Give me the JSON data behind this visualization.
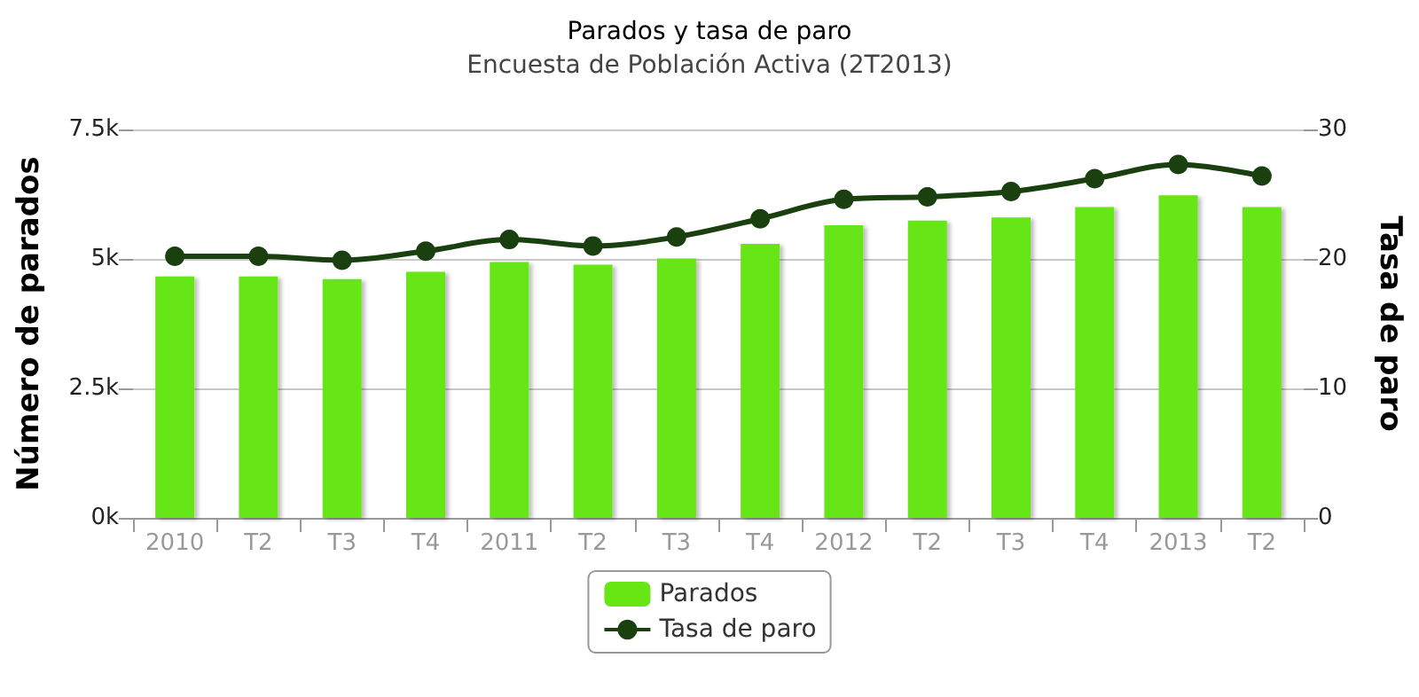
{
  "chart_data": {
    "type": "bar",
    "title": "Parados y tasa de paro",
    "subtitle": "Encuesta de Población Activa (2T2013)",
    "ylabel": "Número de parados",
    "y2label": "Tasa de paro",
    "categories": [
      "2010",
      "T2",
      "T3",
      "T4",
      "2011",
      "T2",
      "T3",
      "T4",
      "2012",
      "T2",
      "T3",
      "T4",
      "2013",
      "T2"
    ],
    "series": [
      {
        "name": "Parados",
        "color": "#66e612",
        "values": [
          4660,
          4660,
          4610,
          4750,
          4940,
          4890,
          5010,
          5290,
          5650,
          5740,
          5800,
          6000,
          6230,
          6000
        ]
      },
      {
        "name": "Tasa de paro",
        "type": "line",
        "axis": "y2",
        "color": "#1a4010",
        "values": [
          20.2,
          20.2,
          19.9,
          20.6,
          21.5,
          21.0,
          21.7,
          23.1,
          24.6,
          24.8,
          25.2,
          26.2,
          27.3,
          26.4
        ]
      }
    ],
    "ylim": [
      0,
      7500
    ],
    "yticks": [
      {
        "value": 0,
        "label": "0k"
      },
      {
        "value": 2500,
        "label": "2.5k"
      },
      {
        "value": 5000,
        "label": "5k"
      },
      {
        "value": 7500,
        "label": "7.5k"
      }
    ],
    "y2lim": [
      0,
      30
    ],
    "y2ticks": [
      0,
      10,
      20,
      30
    ],
    "grid": "y",
    "legend": "bottom",
    "marker": "circle"
  }
}
